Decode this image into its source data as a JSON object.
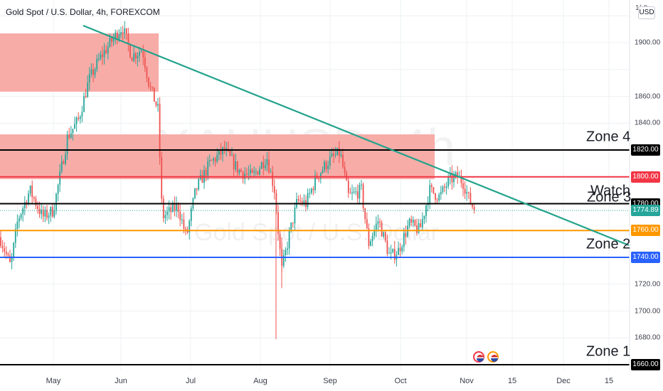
{
  "header": {
    "title": "Gold Spot / U.S. Dollar, 4h, FOREXCOM",
    "currency": "USD",
    "top_price_fragment": "1( 0"
  },
  "watermark": {
    "symbol": "XAUUSD, 4h",
    "name": "Gold Spot / U.S. Dollar"
  },
  "price_axis": {
    "ticks": [
      {
        "value": 1900,
        "label": "1900.00"
      },
      {
        "value": 1860,
        "label": "1860.00"
      },
      {
        "value": 1840,
        "label": "1840.00"
      },
      {
        "value": 1720,
        "label": "1720.00"
      },
      {
        "value": 1700,
        "label": "1700.00"
      },
      {
        "value": 1680,
        "label": "1680.00"
      }
    ]
  },
  "levels": [
    {
      "name": "zone-4",
      "label": "Zone 4",
      "price": 1820,
      "badge": "1820.00",
      "line_color": "#000000",
      "badge_color": "#000000"
    },
    {
      "name": "red-level",
      "label": "",
      "price": 1800,
      "badge": "1800.00",
      "line_color": "#f23645",
      "badge_color": "#f23645"
    },
    {
      "name": "watch",
      "label": "Watch",
      "price": 1780,
      "badge": "1780.00",
      "line_color": "#000000",
      "badge_color": "#000000"
    },
    {
      "name": "current-price",
      "label": "Zone 3",
      "price": 1774.89,
      "badge": "1774.89",
      "line_color": "#26a69a",
      "badge_color": "#26a69a"
    },
    {
      "name": "orange-level",
      "label": "",
      "price": 1760,
      "badge": "1760.00",
      "line_color": "#ff9800",
      "badge_color": "#ff9800"
    },
    {
      "name": "zone-2",
      "label": "Zone 2",
      "price": 1740,
      "badge": "1740.00",
      "line_color": "#2962ff",
      "badge_color": "#2962ff"
    },
    {
      "name": "zone-1",
      "label": "Zone 1",
      "price": 1660,
      "badge": "1660.00",
      "line_color": "#000000",
      "badge_color": "#000000"
    }
  ],
  "time_axis": [
    "May",
    "Jun",
    "Jul",
    "Aug",
    "Sep",
    "Oct",
    "Nov",
    "15",
    "Dec",
    "15"
  ],
  "colors": {
    "up": "#26a69a",
    "down": "#ef5350",
    "zone_fill": "#f7a8a3",
    "trendline": "#22a38c",
    "grid": "#eef0f3"
  },
  "events": [
    {
      "icon": "us-flag-event-icon"
    },
    {
      "icon": "us-flag-event-icon"
    }
  ]
}
